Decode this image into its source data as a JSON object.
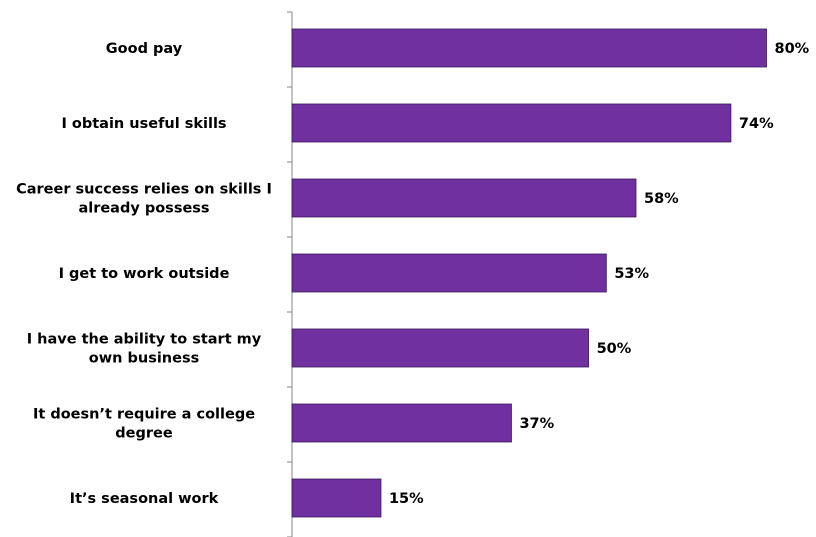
{
  "chart_data": {
    "type": "bar",
    "orientation": "horizontal",
    "categories": [
      [
        "Good pay"
      ],
      [
        "I obtain useful skills"
      ],
      [
        "Career success relies on skills I",
        "already possess"
      ],
      [
        "I get to work outside"
      ],
      [
        "I have the ability to start my",
        "own business"
      ],
      [
        "It doesn’t require a college",
        "degree"
      ],
      [
        "It’s seasonal work"
      ]
    ],
    "values": [
      80,
      74,
      58,
      53,
      50,
      37,
      15
    ],
    "value_labels": [
      "80%",
      "74%",
      "58%",
      "53%",
      "50%",
      "37%",
      "15%"
    ],
    "unit": "%",
    "xlim": [
      0,
      100
    ],
    "grid": false,
    "legend": "none",
    "bar_color": "#7030A0",
    "axis_color": "#868686"
  }
}
